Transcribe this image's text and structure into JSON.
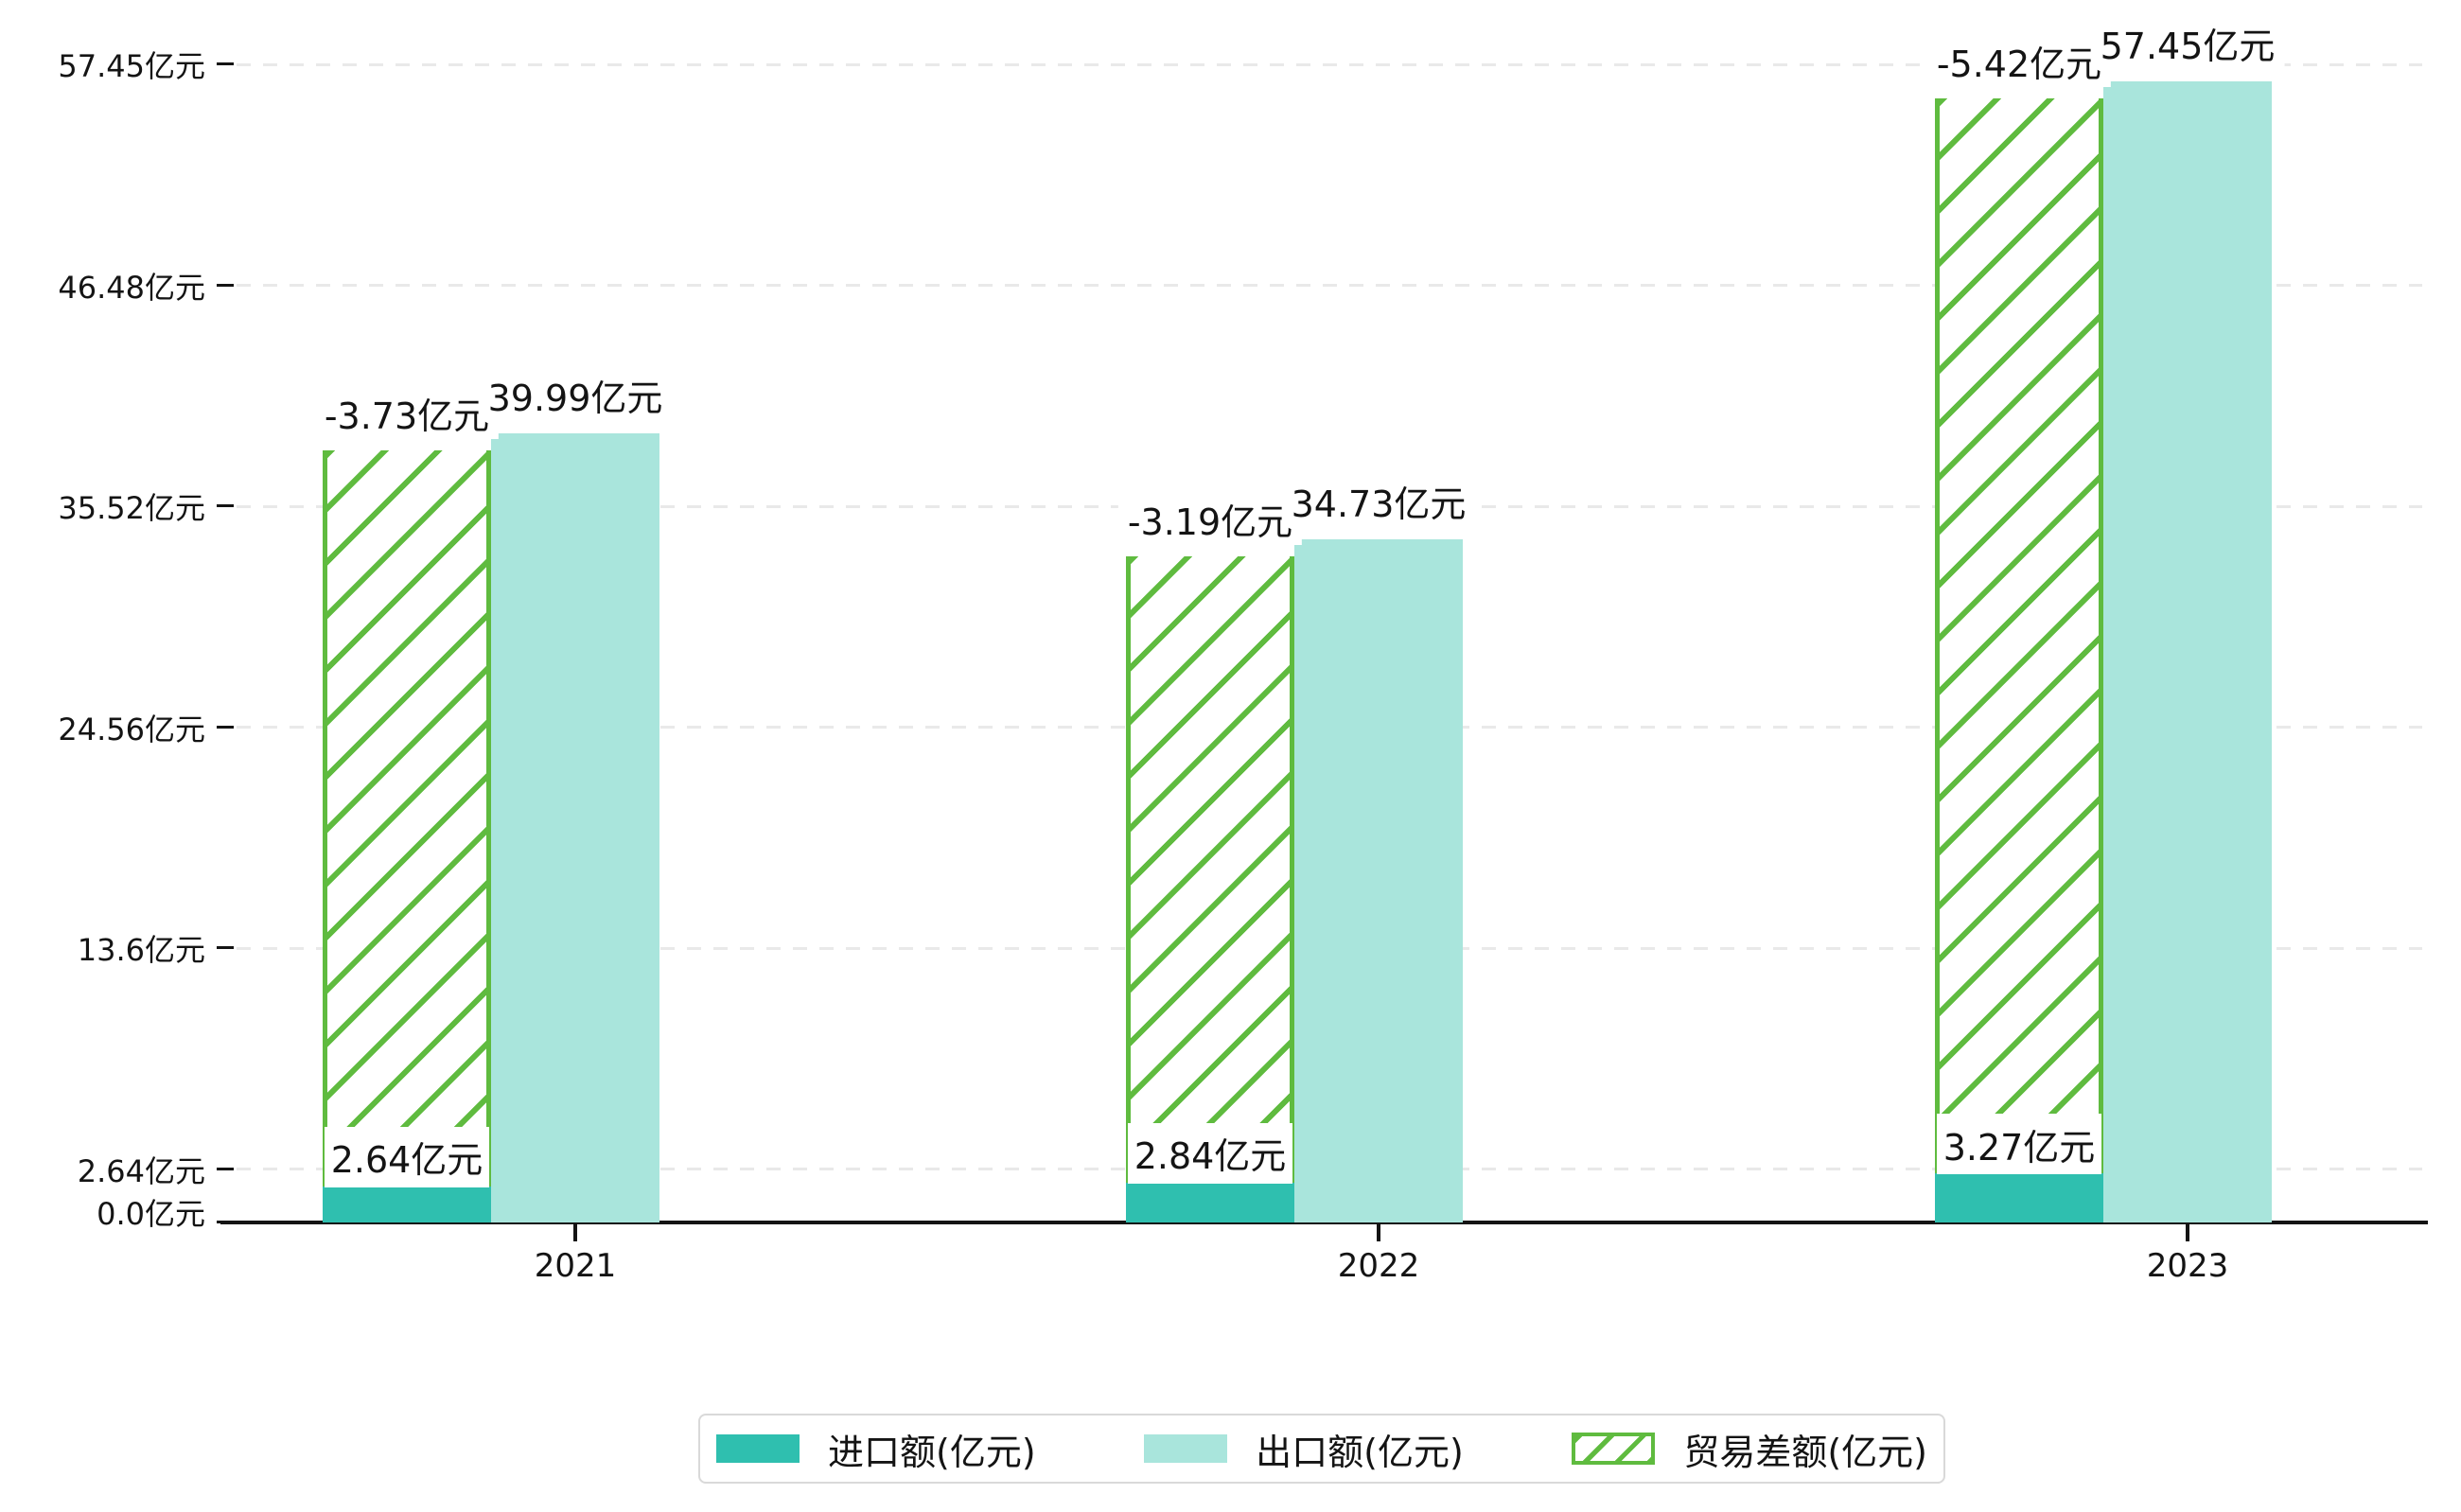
{
  "chart_data": {
    "type": "bar",
    "categories": [
      "2021",
      "2022",
      "2023"
    ],
    "series": [
      {
        "name": "进口额(亿元)",
        "values": [
          2.64,
          2.84,
          3.27
        ],
        "color": "#2FBFAF",
        "style": "solid"
      },
      {
        "name": "出口额(亿元)",
        "values": [
          39.99,
          34.73,
          57.45
        ],
        "color": "#A9E5DC",
        "style": "solid"
      },
      {
        "name": "贸易差额(亿元)",
        "values": [
          -3.73,
          -3.19,
          -5.42
        ],
        "color": "#5FBB3F",
        "style": "hatched",
        "note": "hatched bar drawn stacked from top of import bar up to export bar top"
      }
    ],
    "bar_labels": {
      "import": [
        "2.64亿元",
        "2.84亿元",
        "3.27亿元"
      ],
      "export": [
        "39.99亿元",
        "34.73亿元",
        "57.45亿元"
      ],
      "balance": [
        "-3.73亿元",
        "-3.19亿元",
        "-5.42亿元"
      ]
    },
    "y_ticks": [
      "57.45亿元",
      "46.48亿元",
      "35.52亿元",
      "24.56亿元",
      "13.6亿元",
      "2.64亿元",
      "0.0亿元"
    ],
    "y_tick_values": [
      57.45,
      46.48,
      35.52,
      24.56,
      13.6,
      2.64,
      0.0
    ],
    "unit": "亿元",
    "ylim": [
      0,
      60.5
    ],
    "grid": "horizontal dashed",
    "legend_position": "bottom-center",
    "title": "",
    "xlabel": "",
    "ylabel": ""
  },
  "colors": {
    "import_bar": "#2FBFAF",
    "export_bar": "#A9E5DC",
    "hatch_green": "#5FBB3F",
    "axis": "#141414",
    "gridline": "#E9E9E9",
    "legend_border": "#D9D9D9",
    "background": "#FFFFFF",
    "label_text": "#141414"
  }
}
